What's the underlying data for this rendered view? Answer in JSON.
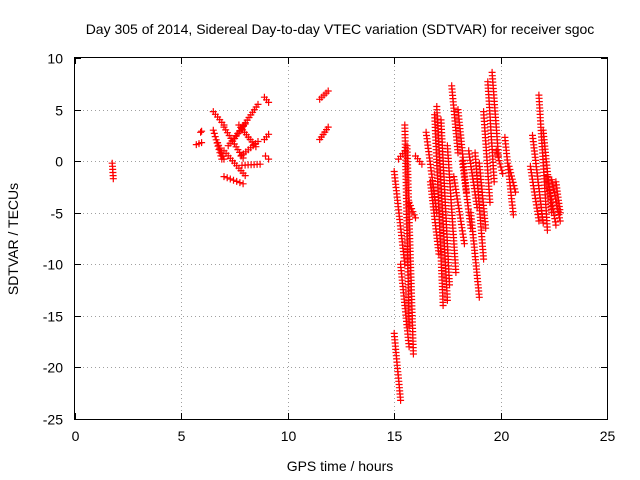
{
  "chart_data": {
    "type": "scatter",
    "title": "Day 305 of 2014, Sidereal Day-to-day VTEC variation (SDTVAR) for receiver sgoc",
    "xlabel": "GPS time / hours",
    "ylabel": "SDTVAR / TECUs",
    "xlim": [
      0,
      25
    ],
    "ylim": [
      -25,
      10
    ],
    "x_ticks": [
      0,
      5,
      10,
      15,
      20,
      25
    ],
    "y_ticks": [
      -25,
      -20,
      -15,
      -10,
      -5,
      0,
      5,
      10
    ],
    "x_tick_labels": [
      "0",
      "5",
      "10",
      "15",
      "20",
      "25"
    ],
    "y_tick_labels": [
      "-25",
      "-20",
      "-15",
      "-10",
      "-5",
      "0",
      "5",
      "10"
    ],
    "grid": true,
    "marker": "+",
    "series_color": "#ff0000",
    "segments": [
      {
        "x0": 1.75,
        "x1": 1.8,
        "y0": -0.2,
        "y1": -1.7
      },
      {
        "x0": 5.7,
        "x1": 5.95,
        "y0": 1.6,
        "y1": 1.8
      },
      {
        "x0": 5.9,
        "x1": 5.95,
        "y0": 2.8,
        "y1": 2.9
      },
      {
        "x0": 6.5,
        "x1": 7.0,
        "y0": 4.8,
        "y1": 3.5
      },
      {
        "x0": 6.5,
        "x1": 6.9,
        "y0": 3.0,
        "y1": 0.2
      },
      {
        "x0": 6.7,
        "x1": 7.0,
        "y0": 1.8,
        "y1": 0.2
      },
      {
        "x0": 7.0,
        "x1": 7.9,
        "y0": 3.3,
        "y1": 0.3
      },
      {
        "x0": 7.0,
        "x1": 7.9,
        "y0": -1.5,
        "y1": -2.2
      },
      {
        "x0": 7.0,
        "x1": 8.0,
        "y0": 1.0,
        "y1": -1.4
      },
      {
        "x0": 7.2,
        "x1": 8.0,
        "y0": 1.5,
        "y1": 3.6
      },
      {
        "x0": 7.5,
        "x1": 8.6,
        "y0": 2.2,
        "y1": 5.5
      },
      {
        "x0": 7.8,
        "x1": 8.6,
        "y0": 0.5,
        "y1": 1.9
      },
      {
        "x0": 7.7,
        "x1": 8.5,
        "y0": 3.5,
        "y1": 1.4
      },
      {
        "x0": 7.85,
        "x1": 8.7,
        "y0": -0.4,
        "y1": -0.3
      },
      {
        "x0": 8.9,
        "x1": 9.1,
        "y0": 6.2,
        "y1": 5.7
      },
      {
        "x0": 8.9,
        "x1": 9.1,
        "y0": 2.1,
        "y1": 2.6
      },
      {
        "x0": 8.95,
        "x1": 9.1,
        "y0": 0.5,
        "y1": 0.2
      },
      {
        "x0": 11.5,
        "x1": 11.9,
        "y0": 6.0,
        "y1": 6.8
      },
      {
        "x0": 11.5,
        "x1": 11.9,
        "y0": 2.1,
        "y1": 3.3
      },
      {
        "x0": 15.0,
        "x1": 15.3,
        "y0": -16.7,
        "y1": -23.2
      },
      {
        "x0": 15.0,
        "x1": 15.5,
        "y0": -1.0,
        "y1": -10.0
      },
      {
        "x0": 15.3,
        "x1": 15.7,
        "y0": -10.0,
        "y1": -18.0
      },
      {
        "x0": 15.2,
        "x1": 15.5,
        "y0": 0.2,
        "y1": 1.0
      },
      {
        "x0": 15.5,
        "x1": 15.7,
        "y0": 3.5,
        "y1": -16.0
      },
      {
        "x0": 15.6,
        "x1": 15.9,
        "y0": 1.5,
        "y1": -18.7
      },
      {
        "x0": 15.7,
        "x1": 16.0,
        "y0": -4.0,
        "y1": -5.5
      },
      {
        "x0": 16.0,
        "x1": 16.3,
        "y0": 0.5,
        "y1": -0.3
      },
      {
        "x0": 16.5,
        "x1": 17.0,
        "y0": 2.8,
        "y1": -5.0
      },
      {
        "x0": 16.7,
        "x1": 17.1,
        "y0": -2.0,
        "y1": -9.0
      },
      {
        "x0": 16.9,
        "x1": 17.3,
        "y0": 4.5,
        "y1": -14.0
      },
      {
        "x0": 17.0,
        "x1": 17.5,
        "y0": 5.3,
        "y1": -13.5
      },
      {
        "x0": 17.2,
        "x1": 17.6,
        "y0": 4.0,
        "y1": -12.0
      },
      {
        "x0": 17.5,
        "x1": 17.9,
        "y0": 1.5,
        "y1": -10.8
      },
      {
        "x0": 17.7,
        "x1": 18.0,
        "y0": 7.3,
        "y1": 0.8
      },
      {
        "x0": 17.8,
        "x1": 18.3,
        "y0": -1.5,
        "y1": -8.0
      },
      {
        "x0": 18.0,
        "x1": 18.4,
        "y0": 5.0,
        "y1": -3.0
      },
      {
        "x0": 18.2,
        "x1": 18.6,
        "y0": 0.0,
        "y1": -6.5
      },
      {
        "x0": 18.5,
        "x1": 18.9,
        "y0": 1.0,
        "y1": -4.5
      },
      {
        "x0": 18.6,
        "x1": 19.0,
        "y0": -5.0,
        "y1": -13.2
      },
      {
        "x0": 18.8,
        "x1": 19.2,
        "y0": 0.8,
        "y1": -9.5
      },
      {
        "x0": 19.0,
        "x1": 19.3,
        "y0": -0.2,
        "y1": -6.5
      },
      {
        "x0": 19.2,
        "x1": 19.5,
        "y0": 4.8,
        "y1": -4.0
      },
      {
        "x0": 19.4,
        "x1": 19.7,
        "y0": 7.7,
        "y1": -2.0
      },
      {
        "x0": 19.6,
        "x1": 19.9,
        "y0": 8.6,
        "y1": 0.5
      },
      {
        "x0": 19.8,
        "x1": 20.1,
        "y0": 1.0,
        "y1": -1.2
      },
      {
        "x0": 20.2,
        "x1": 20.6,
        "y0": 2.3,
        "y1": -5.2
      },
      {
        "x0": 20.4,
        "x1": 20.7,
        "y0": -0.5,
        "y1": -3.0
      },
      {
        "x0": 21.4,
        "x1": 21.8,
        "y0": -0.5,
        "y1": -5.8
      },
      {
        "x0": 21.5,
        "x1": 22.0,
        "y0": 2.5,
        "y1": -6.0
      },
      {
        "x0": 21.8,
        "x1": 22.2,
        "y0": 6.4,
        "y1": -6.7
      },
      {
        "x0": 22.0,
        "x1": 22.4,
        "y0": 3.0,
        "y1": -5.0
      },
      {
        "x0": 22.2,
        "x1": 22.6,
        "y0": -1.5,
        "y1": -6.2
      },
      {
        "x0": 22.4,
        "x1": 22.8,
        "y0": -1.8,
        "y1": -5.8
      },
      {
        "x0": 22.6,
        "x1": 22.8,
        "y0": -2.0,
        "y1": -5.0
      }
    ]
  }
}
